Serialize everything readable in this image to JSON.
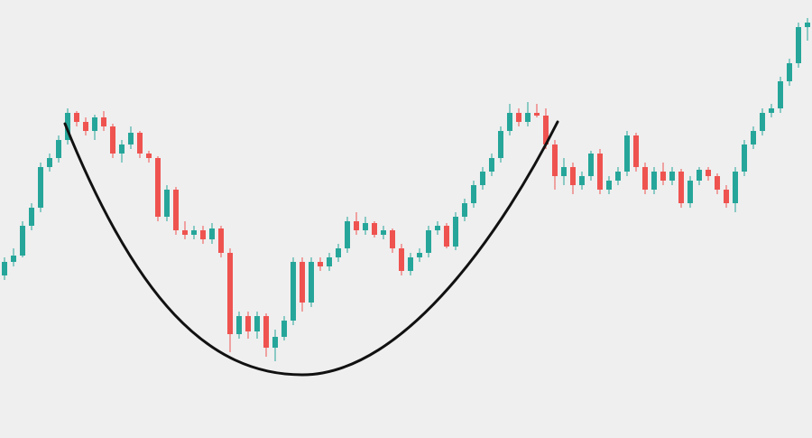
{
  "chart_data": {
    "type": "candlestick",
    "up_color": "#26a69a",
    "down_color": "#ef5350",
    "ylim": [
      0,
      485
    ],
    "open": [
      180,
      195,
      202,
      235,
      255,
      300,
      310,
      330,
      360,
      350,
      340,
      355,
      345,
      315,
      325,
      338,
      315,
      310,
      245,
      275,
      230,
      225,
      230,
      220,
      232,
      205,
      115,
      135,
      118,
      135,
      100,
      112,
      130,
      195,
      150,
      195,
      190,
      200,
      210,
      240,
      230,
      238,
      225,
      230,
      210,
      185,
      200,
      205,
      230,
      235,
      212,
      245,
      260,
      280,
      295,
      310,
      340,
      360,
      350,
      360,
      357,
      325,
      290,
      300,
      280,
      290,
      315,
      275,
      285,
      295,
      335,
      300,
      275,
      295,
      285,
      295,
      260,
      285,
      297,
      290,
      275,
      260,
      295,
      325,
      340,
      360,
      365,
      395,
      415,
      455
    ],
    "high": [
      200,
      210,
      240,
      260,
      305,
      315,
      335,
      365,
      362,
      355,
      358,
      362,
      348,
      330,
      345,
      340,
      318,
      312,
      280,
      278,
      240,
      235,
      235,
      238,
      235,
      210,
      140,
      140,
      140,
      138,
      120,
      135,
      200,
      200,
      200,
      200,
      205,
      215,
      245,
      250,
      245,
      240,
      235,
      232,
      215,
      205,
      210,
      235,
      240,
      238,
      250,
      265,
      285,
      300,
      315,
      345,
      370,
      365,
      372,
      370,
      365,
      330,
      310,
      305,
      295,
      318,
      320,
      290,
      300,
      340,
      338,
      305,
      300,
      305,
      300,
      298,
      290,
      300,
      300,
      293,
      280,
      300,
      330,
      345,
      365,
      370,
      400,
      420,
      460,
      465
    ],
    "low": [
      175,
      190,
      200,
      230,
      250,
      295,
      305,
      325,
      345,
      335,
      330,
      340,
      310,
      305,
      320,
      310,
      305,
      240,
      240,
      225,
      220,
      220,
      215,
      215,
      200,
      95,
      110,
      110,
      110,
      90,
      85,
      108,
      125,
      140,
      145,
      185,
      185,
      195,
      205,
      225,
      225,
      222,
      220,
      205,
      180,
      180,
      195,
      200,
      225,
      210,
      208,
      240,
      255,
      275,
      290,
      305,
      335,
      345,
      345,
      355,
      320,
      275,
      280,
      270,
      275,
      285,
      270,
      270,
      280,
      290,
      295,
      270,
      270,
      280,
      280,
      255,
      255,
      280,
      285,
      270,
      255,
      250,
      290,
      320,
      335,
      355,
      360,
      390,
      410,
      440
    ],
    "close": [
      195,
      202,
      235,
      255,
      300,
      310,
      330,
      360,
      350,
      340,
      355,
      345,
      315,
      325,
      338,
      315,
      310,
      245,
      275,
      230,
      225,
      230,
      220,
      232,
      205,
      115,
      135,
      118,
      135,
      100,
      112,
      130,
      195,
      150,
      195,
      190,
      200,
      210,
      240,
      230,
      238,
      225,
      230,
      210,
      185,
      200,
      205,
      230,
      235,
      212,
      245,
      260,
      280,
      295,
      310,
      340,
      360,
      350,
      360,
      357,
      325,
      290,
      300,
      280,
      290,
      315,
      275,
      285,
      295,
      335,
      300,
      275,
      295,
      285,
      295,
      260,
      285,
      297,
      290,
      275,
      260,
      295,
      325,
      340,
      360,
      365,
      395,
      415,
      455,
      460
    ]
  }
}
